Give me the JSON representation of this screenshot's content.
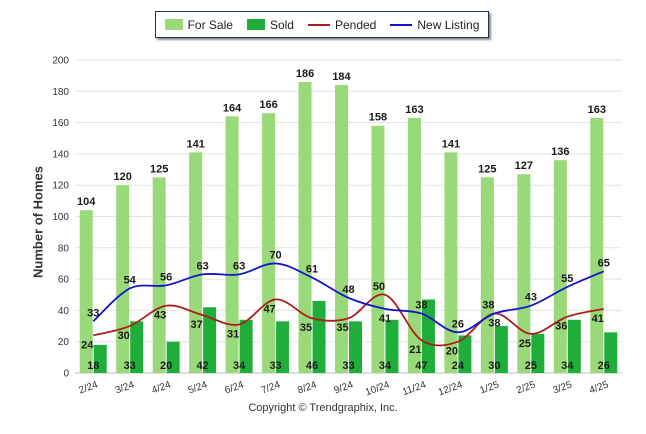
{
  "chart_data": {
    "type": "bar",
    "title": "",
    "xlabel": "",
    "ylabel": "Number of Homes",
    "ylim": [
      0,
      200
    ],
    "yticks": [
      0,
      20,
      40,
      60,
      80,
      100,
      120,
      140,
      160,
      180,
      200
    ],
    "grid": true,
    "legend_position": "top",
    "categories": [
      "2/24",
      "3/24",
      "4/24",
      "5/24",
      "6/24",
      "7/24",
      "8/24",
      "9/24",
      "10/24",
      "11/24",
      "12/24",
      "1/25",
      "2/25",
      "3/25",
      "4/25"
    ],
    "series": [
      {
        "name": "For Sale",
        "type": "bar",
        "color": "#9ad97a",
        "values": [
          104,
          120,
          125,
          141,
          164,
          166,
          186,
          184,
          158,
          163,
          141,
          125,
          127,
          136,
          163
        ]
      },
      {
        "name": "Sold",
        "type": "bar",
        "color": "#1fae3a",
        "values": [
          18,
          33,
          20,
          42,
          34,
          33,
          46,
          33,
          34,
          47,
          24,
          30,
          25,
          34,
          26
        ]
      },
      {
        "name": "Pended",
        "type": "line",
        "color": "#b01c1c",
        "values": [
          24,
          30,
          43,
          37,
          31,
          47,
          35,
          35,
          50,
          21,
          20,
          38,
          25,
          36,
          41
        ]
      },
      {
        "name": "New Listing",
        "type": "line",
        "color": "#1414cc",
        "values": [
          33,
          54,
          56,
          63,
          63,
          70,
          61,
          48,
          41,
          38,
          26,
          38,
          43,
          55,
          65
        ]
      }
    ]
  },
  "footer": {
    "copyright": "Copyright © Trendgraphix, Inc."
  }
}
